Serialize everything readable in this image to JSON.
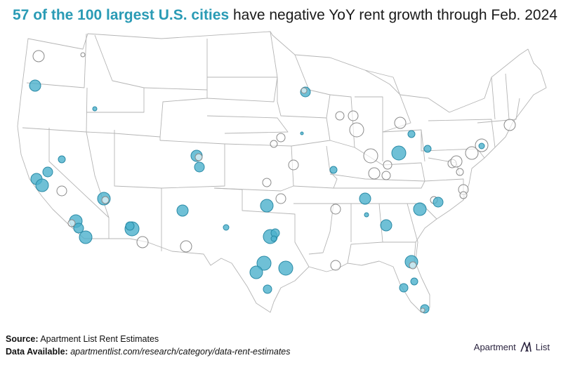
{
  "title": {
    "highlight": "57 of the 100 largest U.S. cities",
    "rest": " have negative YoY rent growth through Feb. 2024"
  },
  "colors": {
    "negative_fill": "#4bb0cc",
    "negative_stroke": "#2a8aa6",
    "positive_fill": "#ffffff",
    "positive_stroke": "#8a8a8a",
    "state_border": "#b5b5b5",
    "title_accent": "#2a9bb5"
  },
  "footer": {
    "source_label": "Source:",
    "source_text": " Apartment List Rent Estimates",
    "data_label": "Data Available:",
    "data_text": "apartmentlist.com/research/category/data-rent-estimates"
  },
  "brand": {
    "name_a": "Apartment",
    "name_b": "List",
    "logo_icon": "apartment-list-logo-icon"
  }
}
